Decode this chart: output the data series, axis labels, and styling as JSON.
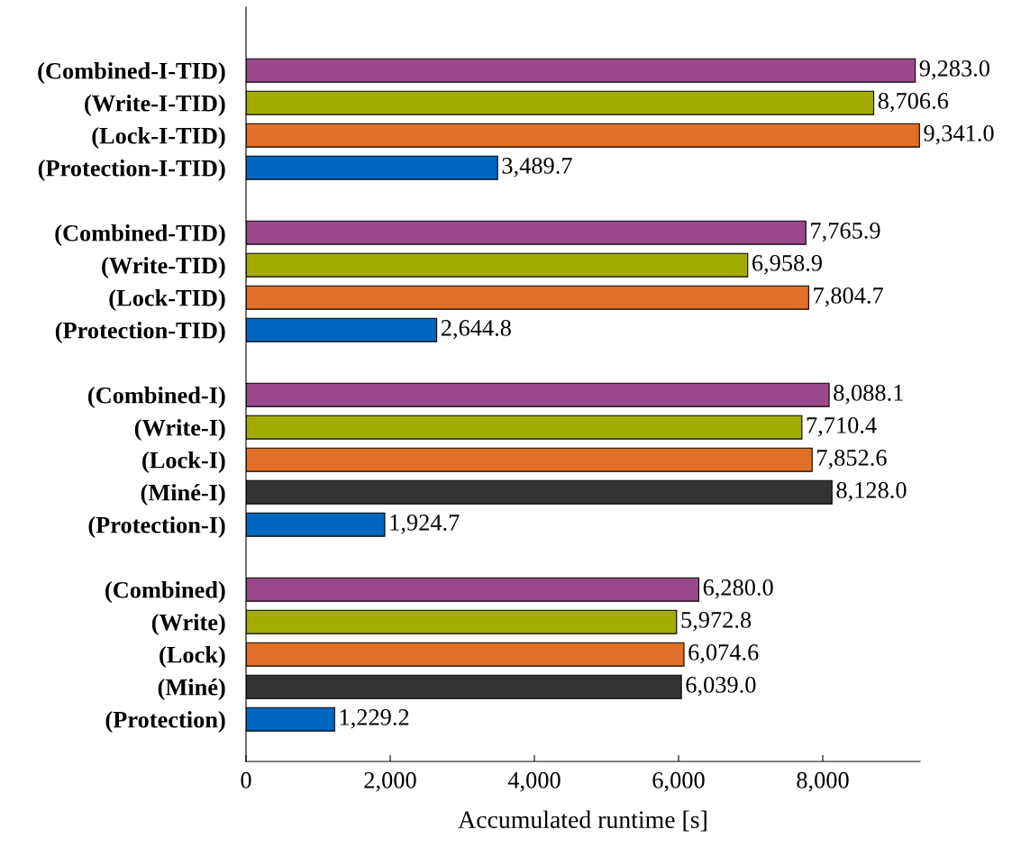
{
  "chart_data": {
    "type": "bar",
    "orientation": "horizontal",
    "xlabel": "Accumulated runtime [s]",
    "categories": [
      "(Combined-I-TID)",
      "(Write-I-TID)",
      "(Lock-I-TID)",
      "(Protection-I-TID)",
      null,
      "(Combined-TID)",
      "(Write-TID)",
      "(Lock-TID)",
      "(Protection-TID)",
      null,
      "(Combined-I)",
      "(Write-I)",
      "(Lock-I)",
      "(Miné-I)",
      "(Protection-I)",
      null,
      "(Combined)",
      "(Write)",
      "(Lock)",
      "(Miné)",
      "(Protection)"
    ],
    "values": [
      9283.0,
      8706.6,
      9341.0,
      3489.7,
      null,
      7765.9,
      6958.9,
      7804.7,
      2644.8,
      null,
      8088.1,
      7710.4,
      7852.6,
      8128.0,
      1924.7,
      null,
      6280.0,
      5972.8,
      6074.6,
      6039.0,
      1229.2
    ],
    "colors": [
      "#9a4a8c",
      "#a3ad00",
      "#e07027",
      "#0067c0",
      null,
      "#9a4a8c",
      "#a3ad00",
      "#e07027",
      "#0067c0",
      null,
      "#9a4a8c",
      "#a3ad00",
      "#e07027",
      "#333333",
      "#0067c0",
      null,
      "#9a4a8c",
      "#a3ad00",
      "#e07027",
      "#333333",
      "#0067c0"
    ],
    "value_labels": [
      "9,283.0",
      "8,706.6",
      "9,341.0",
      "3,489.7",
      null,
      "7,765.9",
      "6,958.9",
      "7,804.7",
      "2,644.8",
      null,
      "8,088.1",
      "7,710.4",
      "7,852.6",
      "8,128.0",
      "1,924.7",
      null,
      "6,280.0",
      "5,972.8",
      "6,074.6",
      "6,039.0",
      "1,229.2"
    ],
    "xlim": [
      0,
      9350
    ],
    "xticks": [
      0,
      {
        "value": 2000,
        "label": "2,000"
      },
      {
        "value": 4000,
        "label": "4,000"
      },
      {
        "value": 6000,
        "label": "6,000"
      },
      {
        "value": 8000,
        "label": "8,000"
      }
    ],
    "grid": false,
    "legend": false
  }
}
